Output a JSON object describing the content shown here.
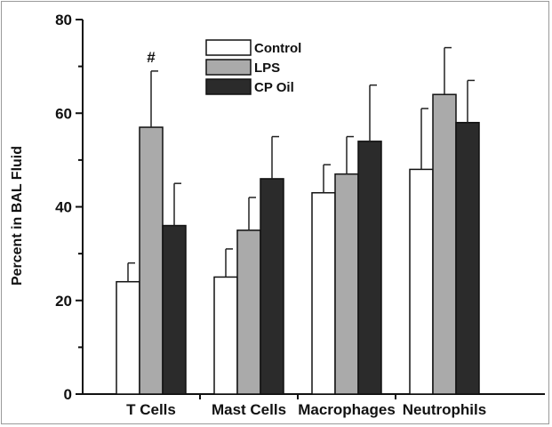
{
  "chart_data": {
    "type": "bar",
    "categories": [
      "T Cells",
      "Mast Cells",
      "Macrophages",
      "Neutrophils"
    ],
    "series": [
      {
        "name": "Control",
        "values": [
          24,
          25,
          43,
          48
        ],
        "errors": [
          4,
          6,
          6,
          13
        ],
        "color": "#ffffff"
      },
      {
        "name": "LPS",
        "values": [
          57,
          35,
          47,
          64
        ],
        "errors": [
          12,
          7,
          8,
          10
        ],
        "color": "#aaaaaa"
      },
      {
        "name": "CP Oil",
        "values": [
          36,
          46,
          54,
          58
        ],
        "errors": [
          9,
          9,
          12,
          9
        ],
        "color": "#2b2b2b"
      }
    ],
    "ylabel": "Percent in BAL Fluid",
    "xlabel": "",
    "ylim": [
      0,
      80
    ],
    "yticks": [
      0,
      20,
      40,
      60,
      80
    ],
    "legend_position": "top-center",
    "grid": false,
    "annotations": [
      {
        "text": "#",
        "category": "T Cells",
        "series": "LPS"
      }
    ]
  }
}
